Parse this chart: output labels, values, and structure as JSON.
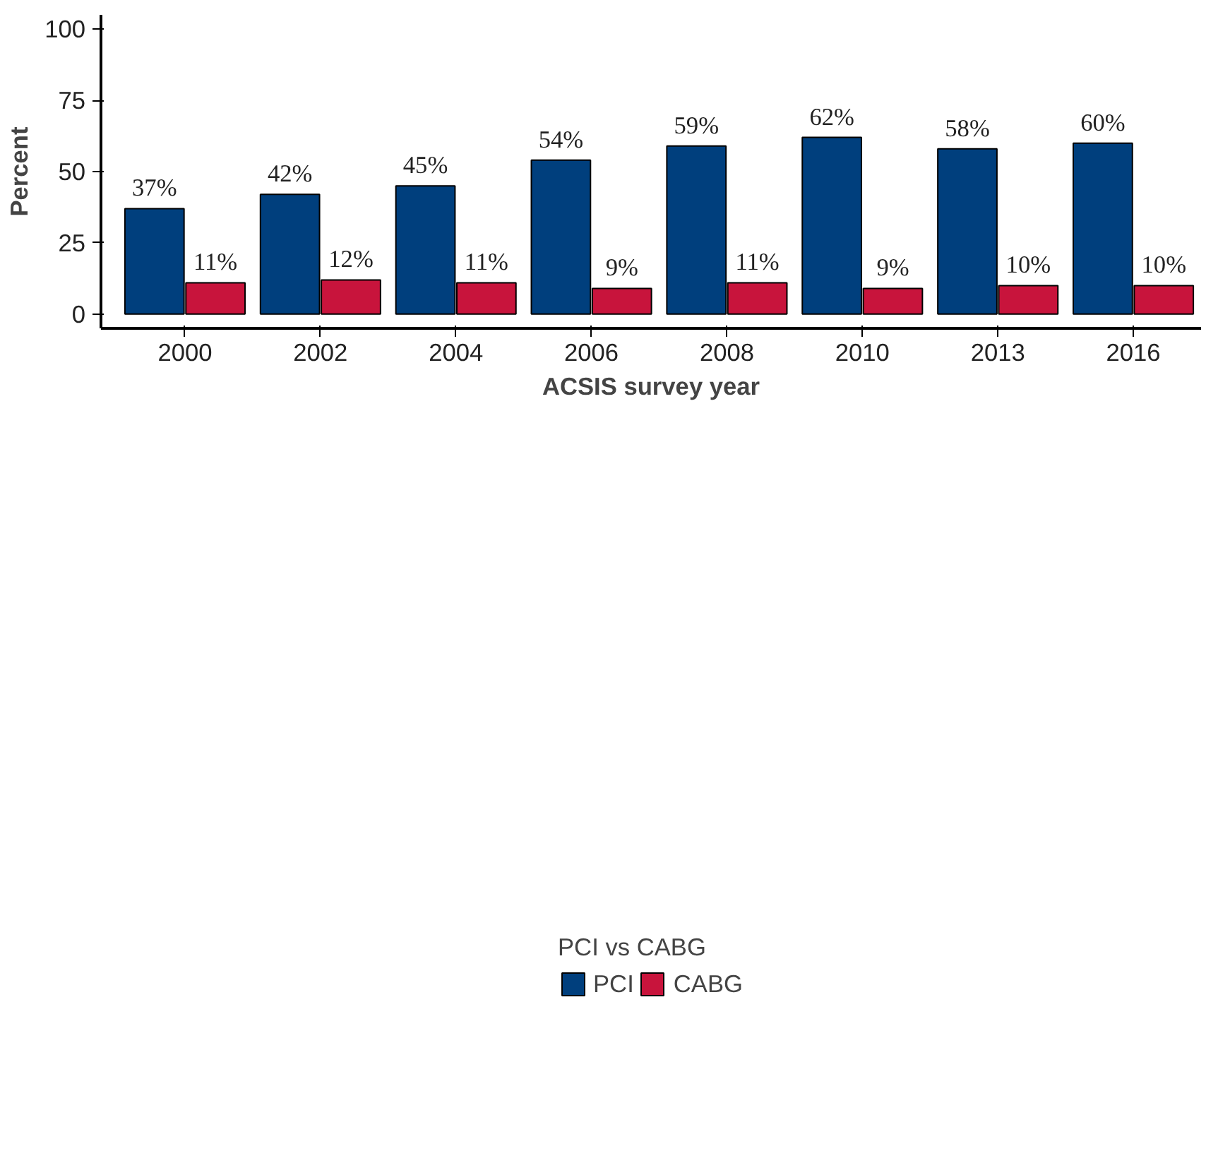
{
  "chart_data": {
    "type": "bar",
    "xlabel": "ACSIS survey year",
    "ylabel": "Percent",
    "legend_title": "PCI vs CABG",
    "categories": [
      "2000",
      "2002",
      "2004",
      "2006",
      "2008",
      "2010",
      "2013",
      "2016"
    ],
    "series": [
      {
        "name": "PCI",
        "color": "#003f7d",
        "values": [
          37,
          42,
          45,
          54,
          59,
          62,
          58,
          60
        ],
        "value_labels": [
          "37%",
          "42%",
          "45%",
          "54%",
          "59%",
          "62%",
          "58%",
          "60%"
        ]
      },
      {
        "name": "CABG",
        "color": "#c8143c",
        "values": [
          11,
          12,
          11,
          9,
          11,
          9,
          10,
          10
        ],
        "value_labels": [
          "11%",
          "12%",
          "11%",
          "9%",
          "11%",
          "9%",
          "10%",
          "10%"
        ]
      }
    ],
    "ylim": [
      -5,
      105
    ],
    "yticks": [
      0,
      25,
      50,
      75,
      100
    ],
    "grid": false,
    "legend": "bottom"
  }
}
